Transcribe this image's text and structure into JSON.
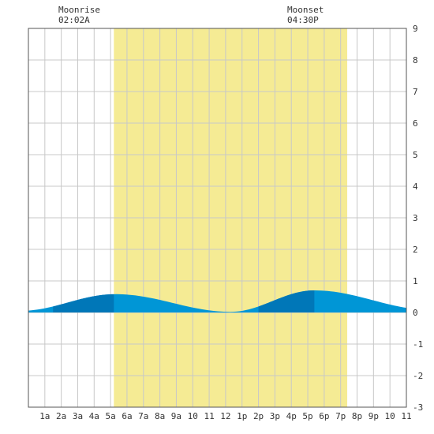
{
  "moon": {
    "moonrise": {
      "label": "Moonrise",
      "time": "02:02A",
      "hour": 2.03
    },
    "moonset": {
      "label": "Moonset",
      "time": "04:30P",
      "hour": 16.5
    }
  },
  "colors": {
    "daylight": "#f5eb94",
    "tide_light": "#0096d6",
    "tide_dark": "#0077b8",
    "grid": "#c8c8c8",
    "frame": "#555555"
  },
  "chart_data": {
    "type": "area",
    "title": "",
    "xlabel": "",
    "ylabel": "",
    "xlim": [
      0,
      23
    ],
    "ylim": [
      -3,
      9
    ],
    "yticks": [
      9,
      8,
      7,
      6,
      5,
      4,
      3,
      2,
      1,
      0,
      -1,
      -2,
      -3
    ],
    "xtick_labels": [
      "1a",
      "2a",
      "3a",
      "4a",
      "5a",
      "6a",
      "7a",
      "8a",
      "9a",
      "10",
      "11",
      "12",
      "1p",
      "2p",
      "3p",
      "4p",
      "5p",
      "6p",
      "7p",
      "8p",
      "9p",
      "10",
      "11"
    ],
    "xtick_hours": [
      1,
      2,
      3,
      4,
      5,
      6,
      7,
      8,
      9,
      10,
      11,
      12,
      13,
      14,
      15,
      16,
      17,
      18,
      19,
      20,
      21,
      22,
      23
    ],
    "daylight": {
      "start_hour": 5.2,
      "end_hour": 19.4
    },
    "tide_extremes": [
      {
        "hour": -0.5,
        "height": 0.05,
        "kind": "low"
      },
      {
        "hour": 5.3,
        "height": 0.58,
        "kind": "high"
      },
      {
        "hour": 12.3,
        "height": 0.02,
        "kind": "low"
      },
      {
        "hour": 17.4,
        "height": 0.7,
        "kind": "high"
      },
      {
        "hour": 24.5,
        "height": 0.08,
        "kind": "low"
      }
    ],
    "dark_bands": [
      [
        1.5,
        5.2
      ],
      [
        14.0,
        17.4
      ]
    ],
    "grid": true
  }
}
